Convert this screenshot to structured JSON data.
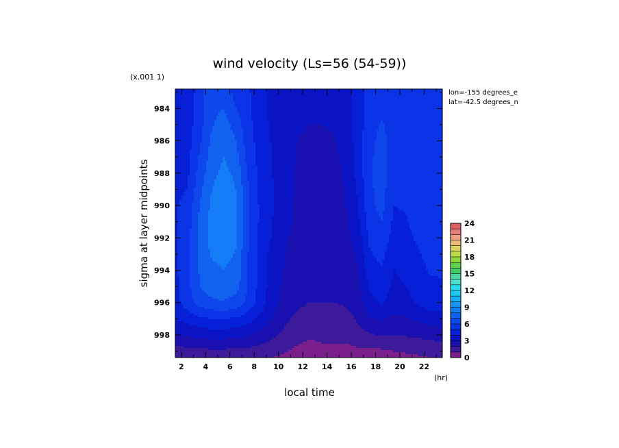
{
  "chart_data": {
    "type": "heatmap",
    "style": "filled-contour",
    "title": "wind velocity (Ls=56 (54-59))",
    "scale_note": "(x.001 1)",
    "xlabel": "local time",
    "xunit": "(hr)",
    "ylabel": "sigma at layer midpoints",
    "annotations": [
      "lon=-155 degrees_e",
      "lat=-42.5 degrees_n"
    ],
    "x_ticks": [
      "2",
      "4",
      "6",
      "8",
      "10",
      "12",
      "14",
      "16",
      "18",
      "20",
      "22"
    ],
    "y_ticks": [
      "984",
      "986",
      "988",
      "990",
      "992",
      "994",
      "996",
      "998"
    ],
    "xlim": [
      1.5,
      23.5
    ],
    "ylim": [
      982.8,
      999.4
    ],
    "y_inverted": true,
    "colorbar": {
      "ticks": [
        "0",
        "3",
        "6",
        "9",
        "12",
        "15",
        "18",
        "21",
        "24"
      ],
      "range": [
        0,
        24
      ],
      "colors": [
        "#7a1f8c",
        "#3c1a99",
        "#1a10b0",
        "#0a14c4",
        "#0620d8",
        "#0a34e6",
        "#0e48ec",
        "#1262f0",
        "#147cf4",
        "#1694f4",
        "#18b0f2",
        "#1cc8ee",
        "#26dcee",
        "#4be0d2",
        "#4cd6a0",
        "#44cc6a",
        "#5cd24a",
        "#8cda40",
        "#bcdc48",
        "#dcd460",
        "#ecbc76",
        "#ec9e80",
        "#e67e7e",
        "#dc5f60"
      ]
    },
    "x": [
      1.5,
      2.5,
      3.5,
      4.5,
      5.5,
      6.5,
      7.5,
      8.5,
      9.5,
      10.5,
      11.5,
      12.5,
      13.5,
      14.5,
      15.5,
      16.5,
      17.5,
      18.5,
      19.5,
      20.5,
      21.5,
      22.5,
      23.5
    ],
    "y": [
      982.8,
      984,
      985,
      986,
      987,
      988,
      989,
      990,
      991,
      992,
      993,
      994,
      995,
      996,
      996.5,
      997,
      997.5,
      998,
      998.5,
      999,
      999.4
    ],
    "z": [
      [
        4.6,
        4.2,
        5.5,
        6.7,
        6.4,
        5.6,
        5.1,
        4.4,
        3.7,
        3.3,
        3.2,
        3.3,
        3.3,
        3.4,
        3.5,
        4.4,
        5.4,
        5.7,
        5.3,
        5.6,
        5.8,
        5.7,
        5.6
      ],
      [
        4.6,
        4.3,
        5.5,
        6.8,
        7.0,
        6.0,
        5.2,
        4.5,
        3.7,
        3.3,
        3.2,
        3.3,
        3.3,
        3.4,
        3.5,
        4.4,
        5.4,
        5.7,
        5.4,
        5.6,
        5.8,
        5.7,
        5.6
      ],
      [
        4.6,
        4.5,
        5.6,
        6.9,
        7.4,
        6.6,
        5.3,
        4.5,
        3.8,
        3.4,
        3.1,
        3.0,
        3.0,
        3.1,
        3.4,
        4.4,
        5.6,
        6.1,
        5.6,
        5.7,
        5.9,
        5.8,
        5.7
      ],
      [
        4.7,
        4.6,
        5.8,
        7.2,
        7.8,
        7.0,
        5.4,
        4.6,
        3.9,
        3.5,
        3.0,
        2.9,
        2.8,
        2.9,
        3.3,
        4.4,
        5.7,
        6.3,
        5.6,
        5.8,
        6.0,
        5.9,
        5.8
      ],
      [
        4.7,
        4.7,
        6.1,
        7.4,
        8.0,
        7.4,
        5.6,
        4.6,
        4.0,
        3.5,
        3.0,
        2.8,
        2.8,
        2.8,
        3.2,
        4.4,
        5.8,
        6.4,
        5.5,
        5.6,
        5.9,
        5.9,
        5.8
      ],
      [
        4.8,
        4.8,
        6.4,
        7.7,
        8.3,
        7.8,
        5.9,
        4.7,
        4.0,
        3.5,
        2.9,
        2.8,
        2.7,
        2.7,
        3.1,
        4.3,
        5.8,
        6.5,
        5.4,
        5.4,
        5.8,
        5.8,
        5.7
      ],
      [
        4.8,
        5.0,
        6.7,
        8.0,
        8.5,
        8.0,
        6.1,
        4.7,
        4.1,
        3.5,
        2.9,
        2.7,
        2.7,
        2.7,
        3.0,
        4.1,
        5.8,
        6.4,
        5.2,
        5.3,
        5.7,
        5.8,
        5.7
      ],
      [
        4.9,
        5.3,
        7.0,
        8.2,
        8.7,
        8.2,
        6.2,
        4.8,
        4.1,
        3.4,
        2.8,
        2.7,
        2.6,
        2.6,
        2.9,
        3.9,
        5.7,
        6.3,
        5.0,
        5.1,
        5.6,
        5.7,
        5.6
      ],
      [
        4.9,
        5.5,
        7.2,
        8.4,
        8.8,
        8.3,
        6.2,
        4.8,
        4.0,
        3.3,
        2.8,
        2.6,
        2.6,
        2.6,
        2.8,
        3.7,
        5.5,
        6.0,
        4.8,
        4.9,
        5.4,
        5.6,
        5.5
      ],
      [
        4.8,
        5.6,
        7.3,
        8.4,
        8.6,
        8.2,
        6.1,
        4.7,
        3.9,
        3.1,
        2.7,
        2.5,
        2.5,
        2.5,
        2.7,
        3.4,
        5.2,
        5.7,
        4.6,
        4.7,
        5.2,
        5.5,
        5.4
      ],
      [
        4.8,
        5.6,
        7.2,
        8.1,
        8.3,
        7.9,
        6.0,
        4.7,
        3.7,
        3.0,
        2.6,
        2.4,
        2.4,
        2.4,
        2.6,
        3.1,
        4.9,
        5.3,
        4.3,
        4.4,
        4.9,
        5.3,
        5.3
      ],
      [
        4.8,
        5.7,
        7.1,
        7.8,
        8.0,
        7.7,
        6.0,
        4.6,
        3.6,
        2.9,
        2.5,
        2.3,
        2.3,
        2.3,
        2.5,
        2.9,
        4.5,
        4.9,
        4.0,
        4.2,
        4.7,
        5.1,
        5.1
      ],
      [
        4.7,
        5.7,
        7.0,
        7.5,
        7.7,
        7.4,
        5.9,
        4.6,
        3.5,
        2.8,
        2.4,
        2.2,
        2.2,
        2.2,
        2.4,
        2.6,
        4.1,
        4.5,
        3.8,
        4.0,
        4.4,
        4.8,
        4.9
      ],
      [
        4.6,
        5.5,
        6.5,
        6.8,
        6.9,
        6.6,
        5.7,
        4.5,
        3.4,
        2.6,
        2.2,
        2.0,
        2.0,
        2.0,
        2.1,
        2.4,
        3.7,
        4.1,
        3.5,
        3.7,
        4.1,
        4.5,
        4.6
      ],
      [
        4.4,
        5.0,
        5.6,
        5.9,
        6.0,
        5.8,
        5.1,
        4.2,
        3.2,
        2.4,
        2.0,
        1.8,
        1.8,
        1.8,
        1.9,
        2.2,
        3.3,
        3.7,
        3.2,
        3.3,
        3.7,
        4.0,
        4.1
      ],
      [
        4.0,
        4.4,
        4.8,
        5.0,
        5.0,
        4.9,
        4.4,
        3.7,
        2.9,
        2.2,
        1.8,
        1.6,
        1.6,
        1.6,
        1.7,
        2.1,
        2.9,
        3.1,
        2.8,
        2.9,
        3.2,
        3.4,
        3.5
      ],
      [
        3.5,
        3.8,
        4.0,
        4.2,
        4.2,
        4.1,
        3.8,
        3.2,
        2.6,
        2.0,
        1.6,
        1.4,
        1.4,
        1.4,
        1.5,
        1.9,
        2.4,
        2.6,
        2.4,
        2.5,
        2.7,
        2.9,
        3.0
      ],
      [
        2.9,
        3.1,
        3.3,
        3.4,
        3.4,
        3.3,
        3.1,
        2.7,
        2.2,
        1.7,
        1.3,
        1.1,
        1.2,
        1.2,
        1.3,
        1.6,
        1.9,
        2.1,
        2.0,
        2.1,
        2.2,
        2.4,
        2.5
      ],
      [
        2.2,
        2.4,
        2.5,
        2.6,
        2.6,
        2.5,
        2.4,
        2.1,
        1.8,
        1.4,
        1.1,
        0.9,
        1.0,
        1.0,
        1.0,
        1.2,
        1.4,
        1.6,
        1.6,
        1.6,
        1.7,
        1.8,
        1.9
      ],
      [
        1.6,
        1.7,
        1.8,
        1.8,
        1.8,
        1.8,
        1.7,
        1.5,
        1.3,
        1.1,
        0.8,
        0.6,
        0.7,
        0.7,
        0.7,
        0.8,
        0.6,
        0.8,
        1.0,
        1.1,
        1.2,
        1.3,
        1.4
      ],
      [
        1.2,
        1.3,
        1.3,
        1.3,
        1.3,
        1.3,
        1.2,
        1.1,
        1.0,
        0.8,
        0.6,
        0.5,
        0.5,
        0.5,
        0.5,
        0.6,
        0.4,
        0.5,
        0.7,
        0.8,
        0.9,
        1.0,
        1.0
      ]
    ]
  }
}
